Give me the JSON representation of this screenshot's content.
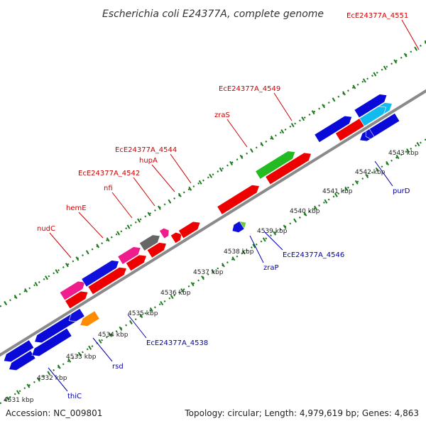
{
  "title": "Escherichia coli E24377A, complete genome",
  "footer": {
    "accession": "Accession: NC_009801",
    "summary": "Topology: circular; Length: 4,979,619 bp; Genes: 4,863"
  },
  "colors": {
    "upper_label": "#cc0000",
    "lower_label": "#0000aa",
    "backbone": "#8a8a8a",
    "tick": "#1f7a1f"
  },
  "ticks": [
    {
      "label": "4531 kbp"
    },
    {
      "label": "4532 kbp"
    },
    {
      "label": "4533 kbp"
    },
    {
      "label": "4534 kbp"
    },
    {
      "label": "4535 kbp"
    },
    {
      "label": "4536 kbp"
    },
    {
      "label": "4537 kbp"
    },
    {
      "label": "4538 kbp"
    },
    {
      "label": "4539 kbp"
    },
    {
      "label": "4540 kbp"
    },
    {
      "label": "4541 kbp"
    },
    {
      "label": "4542 kbp"
    },
    {
      "label": "4543 kbp"
    }
  ],
  "upper_labels": [
    {
      "text": "nudC"
    },
    {
      "text": "hemE"
    },
    {
      "text": "nfi"
    },
    {
      "text": "EcE24377A_4542"
    },
    {
      "text": "hupA"
    },
    {
      "text": "EcE24377A_4544"
    },
    {
      "text": "zraS"
    },
    {
      "text": "EcE24377A_4549"
    },
    {
      "text": "EcE24377A_4551"
    }
  ],
  "lower_labels": [
    {
      "text": "thiC"
    },
    {
      "text": "rsd"
    },
    {
      "text": "EcE24377A_4538"
    },
    {
      "text": "zraP"
    },
    {
      "text": "EcE24377A_4546"
    },
    {
      "text": "purD"
    }
  ],
  "genes": [
    {
      "track": "outer_forward",
      "color": "#ee1c8c"
    },
    {
      "track": "outer_forward",
      "color": "#1010dd"
    },
    {
      "track": "outer_forward",
      "color": "#ee1c8c"
    },
    {
      "track": "outer_forward",
      "color": "#666666"
    },
    {
      "track": "outer_forward",
      "color": "#ee1c8c"
    },
    {
      "track": "outer_forward",
      "color": "#22bb22"
    },
    {
      "track": "outer_forward",
      "color": "#0a0ad8"
    },
    {
      "track": "outer_forward",
      "color": "#0a0ad8"
    },
    {
      "track": "inner_forward",
      "color": "#ee0000"
    },
    {
      "track": "inner_forward",
      "color": "#ee0000"
    },
    {
      "track": "inner_forward",
      "color": "#ee0000"
    },
    {
      "track": "inner_forward",
      "color": "#ee0000"
    },
    {
      "track": "inner_forward",
      "color": "#ee0000"
    },
    {
      "track": "inner_forward",
      "color": "#ee0000"
    },
    {
      "track": "inner_forward",
      "color": "#ee0000"
    },
    {
      "track": "inner_forward",
      "color": "#ee0000"
    },
    {
      "track": "inner_forward",
      "color": "#ee0000"
    },
    {
      "track": "inner_forward",
      "color": "#11bbee"
    },
    {
      "track": "inner_forward",
      "color": "#11bbee"
    },
    {
      "track": "outer_reverse",
      "color": "#0a0ad8"
    },
    {
      "track": "outer_reverse",
      "color": "#0a0ad8"
    },
    {
      "track": "outer_reverse",
      "color": "#1010dd"
    },
    {
      "track": "outer_reverse",
      "color": "#0a0ad8"
    },
    {
      "track": "outer_reverse",
      "color": "#1010dd"
    },
    {
      "track": "inner_reverse",
      "color": "#0a0ad8"
    },
    {
      "track": "inner_reverse",
      "color": "#0a0ad8"
    },
    {
      "track": "inner_reverse",
      "color": "#ff8c00"
    },
    {
      "track": "inner_reverse",
      "color": "#66cc33"
    },
    {
      "track": "inner_reverse",
      "color": "#1010dd"
    }
  ]
}
